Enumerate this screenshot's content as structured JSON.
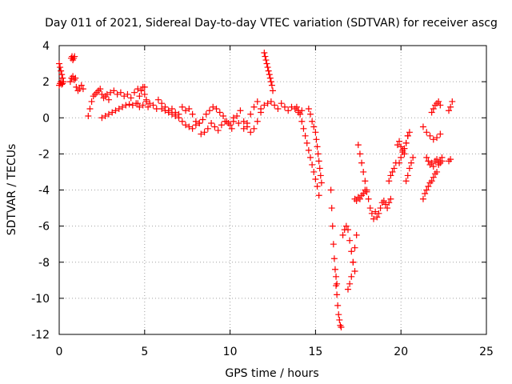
{
  "chart_data": {
    "type": "scatter",
    "title": "Day 011 of 2021, Sidereal Day-to-day VTEC variation (SDTVAR) for receiver ascg",
    "xlabel": "GPS time / hours",
    "ylabel": "SDTVAR / TECUs",
    "xlim": [
      0,
      25
    ],
    "ylim": [
      -12,
      4
    ],
    "xticks": [
      0,
      5,
      10,
      15,
      20,
      25
    ],
    "yticks": [
      -12,
      -10,
      -8,
      -6,
      -4,
      -2,
      0,
      2,
      4
    ],
    "grid": true,
    "marker": "+",
    "color": "#ff0000",
    "series": [
      {
        "name": "SDTVAR",
        "x": [
          0.0,
          0.05,
          0.1,
          0.15,
          0.2,
          0.25,
          0.0,
          0.05,
          0.1,
          0.15,
          0.2,
          0.7,
          0.75,
          0.8,
          0.85,
          0.9,
          0.65,
          0.72,
          0.8,
          0.88,
          0.95,
          1.0,
          1.1,
          1.2,
          1.3,
          1.4,
          1.7,
          1.8,
          1.9,
          2.0,
          2.1,
          2.2,
          2.3,
          2.4,
          2.5,
          2.6,
          2.7,
          2.8,
          2.9,
          3.0,
          3.2,
          3.4,
          3.6,
          3.8,
          4.0,
          4.2,
          4.4,
          4.6,
          4.8,
          5.0,
          2.5,
          2.7,
          2.9,
          3.1,
          3.3,
          3.5,
          3.7,
          3.9,
          4.1,
          4.3,
          4.5,
          4.7,
          4.9,
          5.1,
          5.3,
          5.5,
          5.7,
          4.6,
          4.7,
          4.8,
          4.9,
          5.0,
          5.1,
          5.2,
          5.8,
          6.0,
          6.2,
          6.4,
          6.6,
          6.8,
          7.0,
          7.2,
          7.4,
          7.6,
          7.8,
          6.0,
          6.2,
          6.4,
          6.6,
          6.8,
          7.0,
          7.2,
          7.4,
          7.6,
          7.8,
          8.0,
          8.2,
          8.0,
          8.2,
          8.4,
          8.6,
          8.8,
          9.0,
          9.2,
          9.4,
          9.6,
          9.8,
          10.0,
          8.3,
          8.5,
          8.7,
          8.9,
          9.1,
          9.3,
          9.5,
          9.7,
          9.9,
          10.1,
          10.2,
          10.4,
          10.6,
          10.8,
          11.0,
          11.2,
          11.4,
          11.6,
          11.8,
          10.2,
          10.5,
          10.8,
          11.0,
          11.2,
          11.4,
          11.6,
          12.0,
          12.05,
          12.1,
          12.15,
          12.2,
          12.25,
          12.3,
          12.35,
          12.4,
          12.45,
          12.5,
          11.8,
          12.0,
          12.2,
          12.4,
          12.6,
          12.8,
          13.0,
          13.2,
          13.4,
          13.6,
          13.8,
          14.0,
          14.2,
          13.9,
          14.0,
          14.1,
          14.2,
          14.3,
          14.4,
          14.5,
          14.6,
          14.7,
          14.8,
          14.9,
          15.0,
          15.1,
          15.2,
          14.6,
          14.7,
          14.8,
          14.9,
          15.0,
          15.05,
          15.1,
          15.15,
          15.2,
          15.25,
          15.3,
          15.35,
          15.9,
          15.95,
          16.0,
          16.05,
          16.1,
          16.15,
          16.2,
          16.25,
          16.2,
          16.25,
          16.3,
          16.35,
          16.4,
          16.45,
          16.5,
          16.6,
          16.7,
          16.8,
          16.9,
          17.0,
          17.1,
          17.2,
          17.3,
          16.9,
          17.0,
          17.1,
          17.2,
          17.3,
          17.4,
          17.3,
          17.4,
          17.5,
          17.6,
          17.7,
          17.8,
          17.9,
          18.0,
          17.5,
          17.6,
          17.7,
          17.8,
          17.9,
          18.0,
          18.1,
          18.2,
          18.3,
          18.4,
          18.5,
          18.6,
          18.7,
          18.8,
          18.9,
          19.0,
          19.1,
          19.2,
          19.3,
          19.4,
          19.3,
          19.4,
          19.5,
          19.6,
          19.7,
          19.8,
          19.9,
          20.0,
          20.1,
          20.2,
          20.3,
          20.4,
          20.3,
          20.4,
          20.5,
          20.6,
          20.7,
          19.9,
          20.0,
          20.1,
          20.2,
          20.3,
          20.4,
          20.5,
          21.3,
          21.4,
          21.5,
          21.6,
          21.7,
          21.8,
          21.9,
          22.0,
          22.1,
          22.2,
          22.3,
          22.4,
          21.5,
          21.6,
          21.7,
          21.8,
          21.9,
          22.0,
          22.1,
          22.2,
          22.3,
          22.4,
          21.3,
          21.5,
          21.7,
          21.9,
          22.1,
          22.3,
          21.8,
          21.9,
          22.0,
          22.1,
          22.2,
          22.3,
          22.8,
          22.9,
          23.0,
          22.9,
          22.8
        ],
        "y": [
          3.0,
          2.8,
          2.6,
          2.4,
          2.2,
          2.0,
          1.8,
          1.9,
          2.0,
          1.85,
          1.9,
          3.3,
          3.4,
          3.2,
          3.3,
          3.4,
          2.0,
          2.2,
          2.3,
          2.1,
          2.2,
          1.7,
          1.5,
          1.6,
          1.8,
          1.6,
          0.1,
          0.5,
          0.9,
          1.2,
          1.3,
          1.4,
          1.5,
          1.6,
          1.3,
          1.1,
          1.2,
          1.3,
          1.0,
          1.4,
          1.5,
          1.3,
          1.4,
          1.2,
          1.3,
          1.1,
          1.4,
          1.6,
          1.5,
          1.7,
          0.0,
          0.1,
          0.2,
          0.3,
          0.4,
          0.5,
          0.6,
          0.7,
          0.75,
          0.7,
          0.8,
          0.6,
          0.7,
          0.9,
          0.8,
          0.7,
          0.5,
          0.8,
          1.2,
          1.5,
          1.7,
          1.3,
          1.0,
          0.6,
          1.0,
          0.8,
          0.6,
          0.4,
          0.5,
          0.3,
          0.2,
          0.6,
          0.4,
          0.5,
          0.2,
          0.5,
          0.4,
          0.3,
          0.2,
          0.1,
          0.0,
          -0.2,
          -0.4,
          -0.5,
          -0.6,
          -0.4,
          -0.3,
          -0.2,
          -0.3,
          -0.1,
          0.2,
          0.4,
          0.6,
          0.5,
          0.3,
          0.1,
          -0.2,
          -0.4,
          -0.9,
          -0.8,
          -0.6,
          -0.3,
          -0.5,
          -0.7,
          -0.4,
          -0.2,
          -0.3,
          -0.6,
          -0.2,
          0.1,
          0.4,
          -0.2,
          -0.5,
          -0.8,
          -0.6,
          -0.2,
          0.3,
          0.0,
          -0.3,
          -0.6,
          -0.3,
          0.2,
          0.6,
          0.9,
          3.6,
          3.4,
          3.2,
          3.0,
          2.8,
          2.6,
          2.4,
          2.2,
          2.0,
          1.8,
          1.5,
          0.5,
          0.7,
          0.8,
          0.9,
          0.7,
          0.5,
          0.8,
          0.6,
          0.4,
          0.6,
          0.5,
          0.3,
          0.4,
          0.6,
          0.4,
          0.2,
          -0.2,
          -0.6,
          -1.0,
          -1.4,
          -1.8,
          -2.2,
          -2.6,
          -3.0,
          -3.4,
          -3.8,
          -4.3,
          0.5,
          0.2,
          -0.2,
          -0.5,
          -0.8,
          -1.2,
          -1.6,
          -2.0,
          -2.4,
          -2.8,
          -3.2,
          -3.6,
          -4.0,
          -5.0,
          -6.0,
          -7.0,
          -7.8,
          -8.4,
          -8.8,
          -9.2,
          -9.3,
          -9.8,
          -10.4,
          -10.9,
          -11.2,
          -11.5,
          -11.6,
          -6.5,
          -6.2,
          -6.0,
          -6.2,
          -6.8,
          -7.4,
          -8.0,
          -8.5,
          -9.5,
          -9.2,
          -8.8,
          -8.0,
          -7.2,
          -6.5,
          -4.5,
          -4.6,
          -4.4,
          -4.5,
          -4.3,
          -4.2,
          -4.0,
          -4.1,
          -1.5,
          -2.0,
          -2.5,
          -3.0,
          -3.5,
          -4.0,
          -4.5,
          -5.0,
          -5.3,
          -5.6,
          -5.2,
          -5.5,
          -5.3,
          -5.0,
          -4.7,
          -4.6,
          -4.8,
          -5.0,
          -4.7,
          -4.5,
          -3.5,
          -3.2,
          -3.0,
          -2.8,
          -2.5,
          -1.5,
          -1.3,
          -1.6,
          -1.8,
          -2.0,
          -1.4,
          -1.0,
          -3.5,
          -3.2,
          -2.8,
          -2.5,
          -2.2,
          -2.5,
          -2.2,
          -1.9,
          -1.7,
          -1.4,
          -1.0,
          -0.8,
          -4.5,
          -4.2,
          -4.0,
          -3.8,
          -3.6,
          -3.5,
          -3.3,
          -3.1,
          -3.0,
          -2.5,
          -2.4,
          -2.2,
          -2.2,
          -2.4,
          -2.6,
          -2.5,
          -2.7,
          -2.4,
          -2.3,
          -2.6,
          -2.5,
          -2.4,
          -0.5,
          -0.8,
          -1.0,
          -1.2,
          -1.1,
          -0.9,
          0.3,
          0.5,
          0.7,
          0.8,
          0.9,
          0.7,
          0.4,
          0.6,
          0.9,
          -2.3,
          -2.4
        ]
      }
    ]
  }
}
